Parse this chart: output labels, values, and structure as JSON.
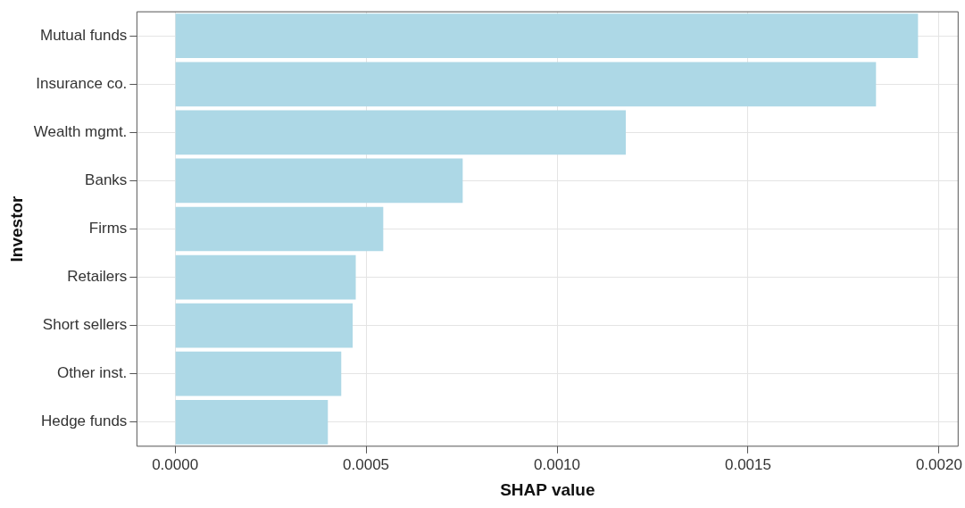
{
  "chart_data": {
    "type": "bar",
    "orientation": "horizontal",
    "xlabel": "SHAP value",
    "ylabel": "Investor",
    "categories": [
      "Mutual funds",
      "Insurance co.",
      "Wealth mgmt.",
      "Banks",
      "Firms",
      "Retailers",
      "Short sellers",
      "Other inst.",
      "Hedge funds"
    ],
    "values": [
      0.001945,
      0.001835,
      0.00118,
      0.000753,
      0.000545,
      0.000473,
      0.000465,
      0.000435,
      0.0004
    ],
    "color": "#add8e6",
    "xlim": [
      -0.0001,
      0.00205
    ],
    "xticks": [
      {
        "value": 0,
        "label": "0.0000"
      },
      {
        "value": 0.0005,
        "label": "0.0005"
      },
      {
        "value": 0.001,
        "label": "0.0010"
      },
      {
        "value": 0.0015,
        "label": "0.0015"
      },
      {
        "value": 0.002,
        "label": "0.0020"
      }
    ],
    "grid": true
  }
}
